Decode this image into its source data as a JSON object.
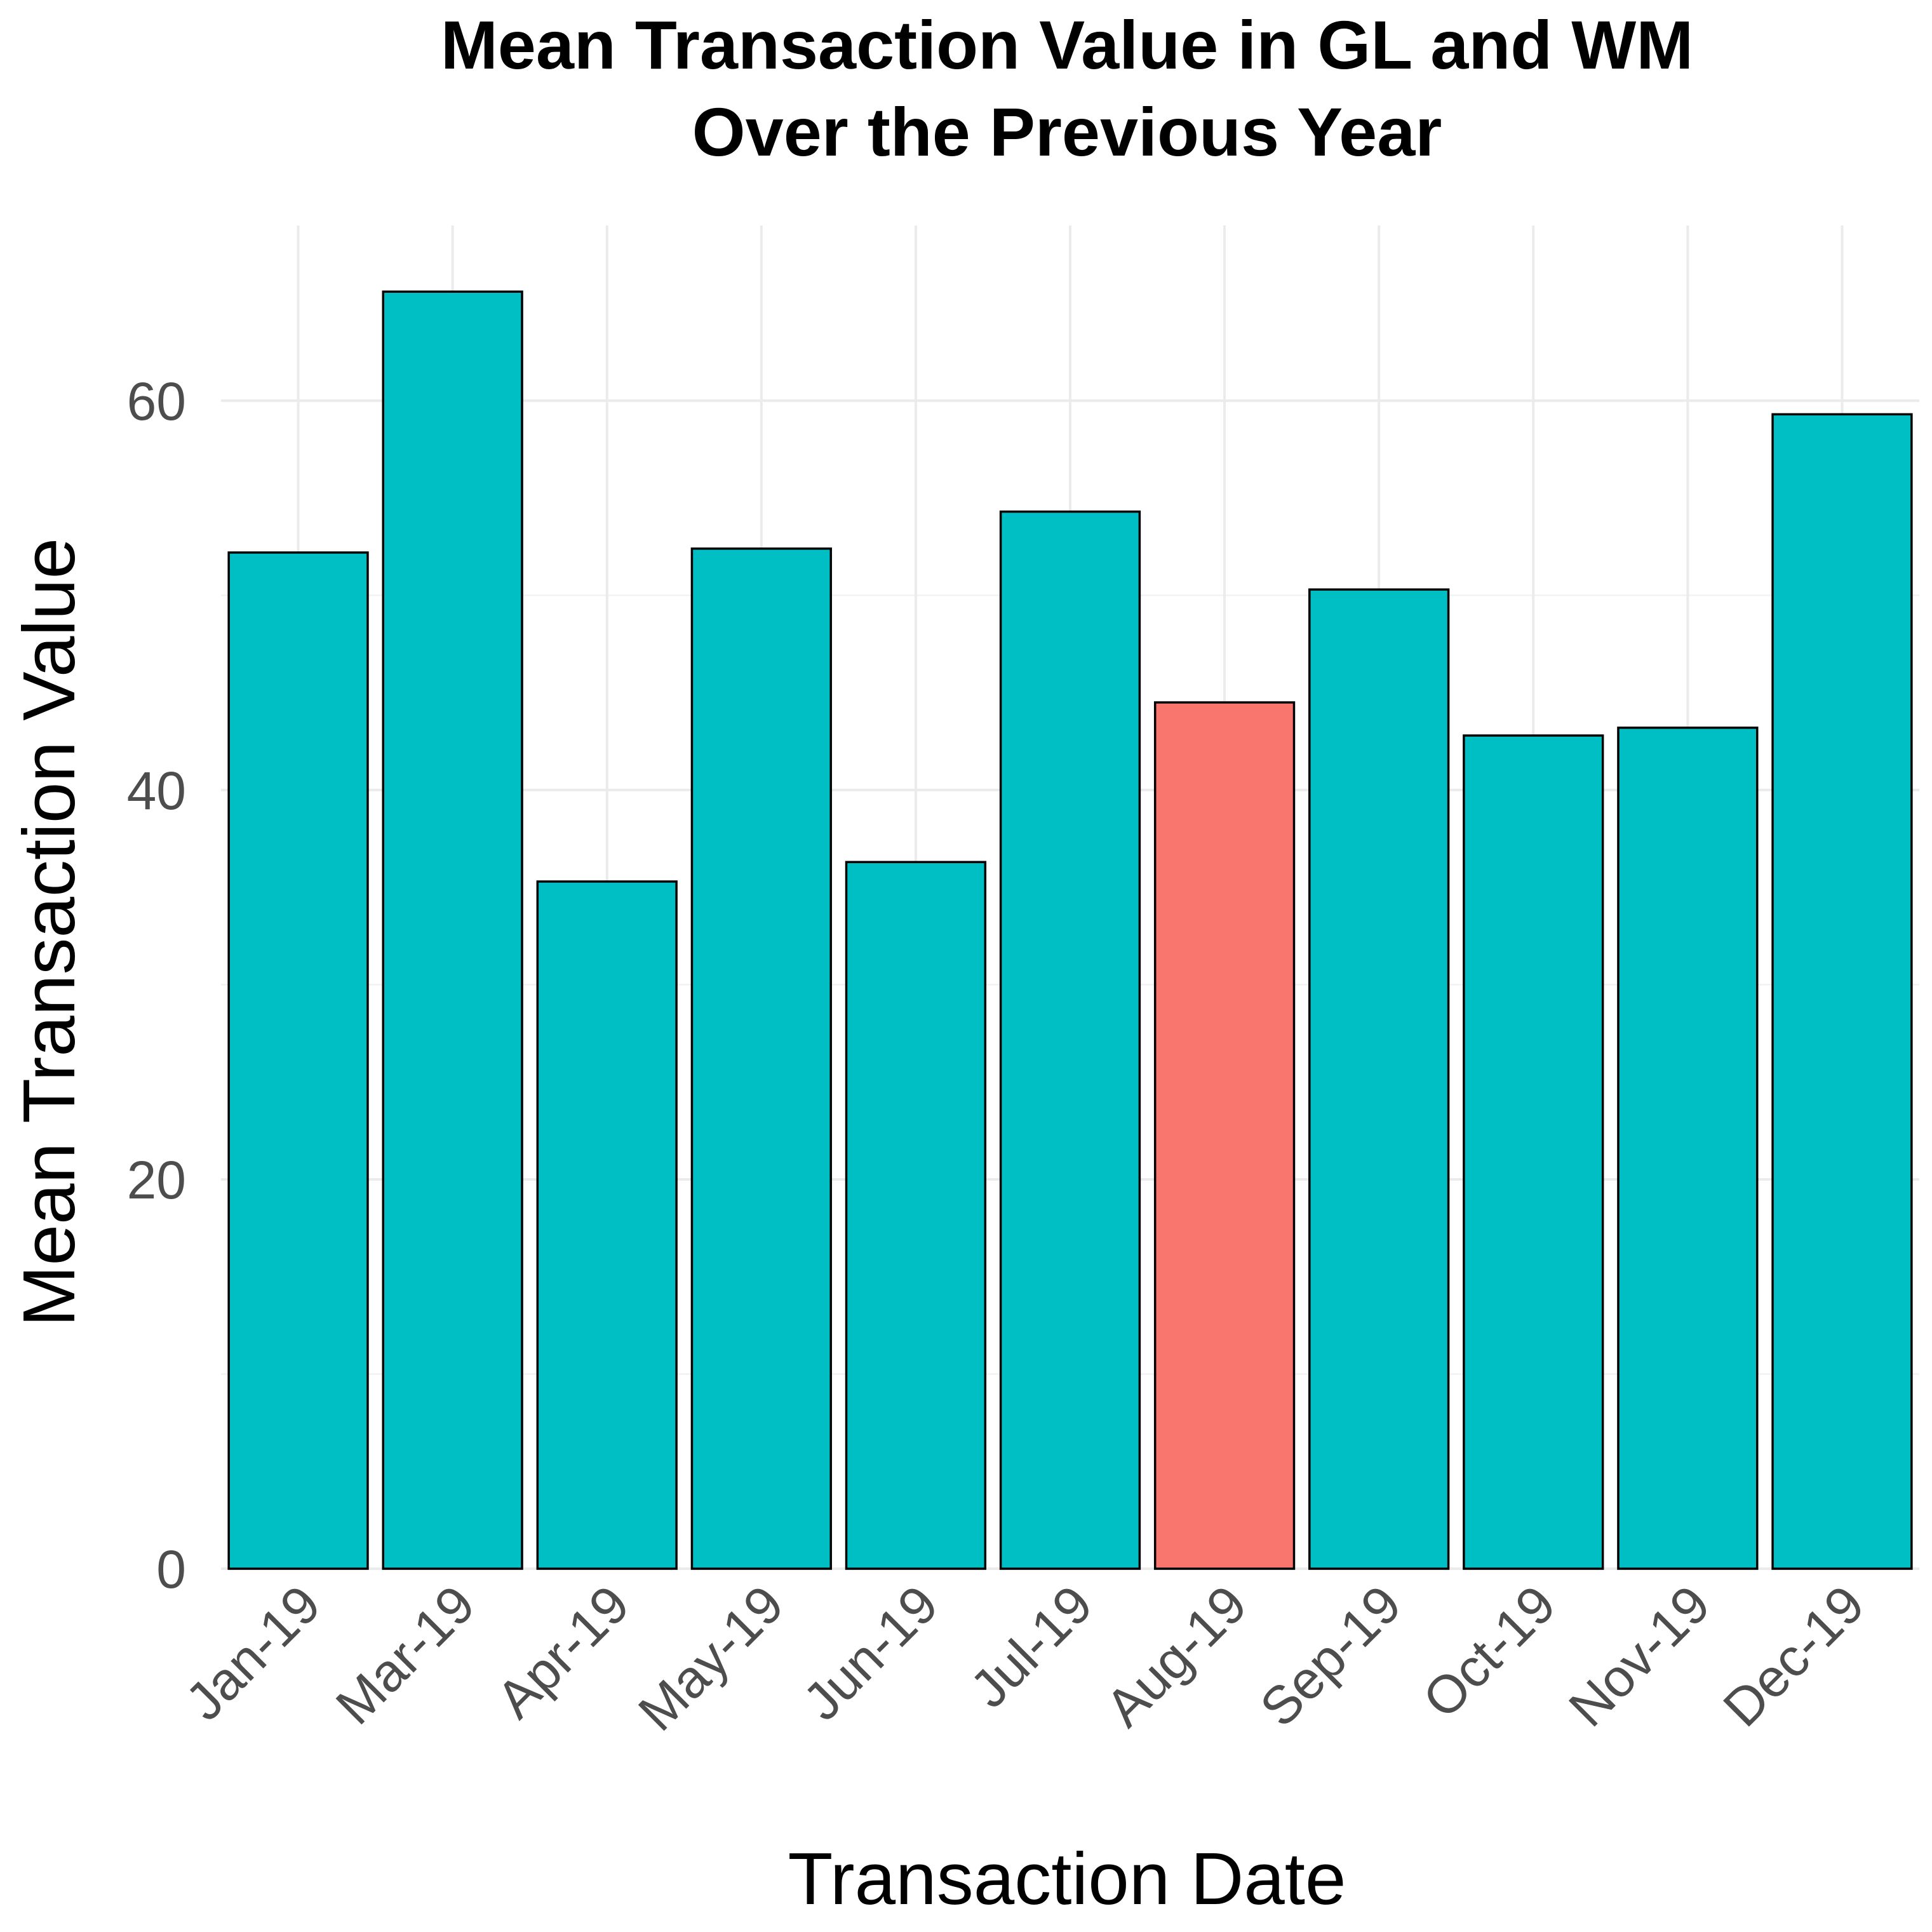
{
  "chart_data": {
    "type": "bar",
    "title": "Mean Transaction Value in GL and WM",
    "subtitle": "Over the Previous Year",
    "xlabel": "Transaction Date",
    "ylabel": "Mean Transaction Value",
    "categories": [
      "Jan-19",
      "Mar-19",
      "Apr-19",
      "May-19",
      "Jun-19",
      "Jul-19",
      "Aug-19",
      "Sep-19",
      "Oct-19",
      "Nov-19",
      "Dec-19"
    ],
    "values": [
      52.2,
      65.6,
      35.3,
      52.4,
      36.3,
      54.3,
      44.5,
      50.3,
      42.8,
      43.2,
      59.3
    ],
    "bar_colors": [
      "#00bfc4",
      "#00bfc4",
      "#00bfc4",
      "#00bfc4",
      "#00bfc4",
      "#00bfc4",
      "#f8766d",
      "#00bfc4",
      "#00bfc4",
      "#00bfc4",
      "#00bfc4"
    ],
    "ylim": [
      0,
      69
    ],
    "yticks": [
      0,
      20,
      40,
      60
    ],
    "ytick_labels": [
      "0",
      "20",
      "40",
      "60"
    ],
    "grid": true,
    "legend": "none"
  }
}
